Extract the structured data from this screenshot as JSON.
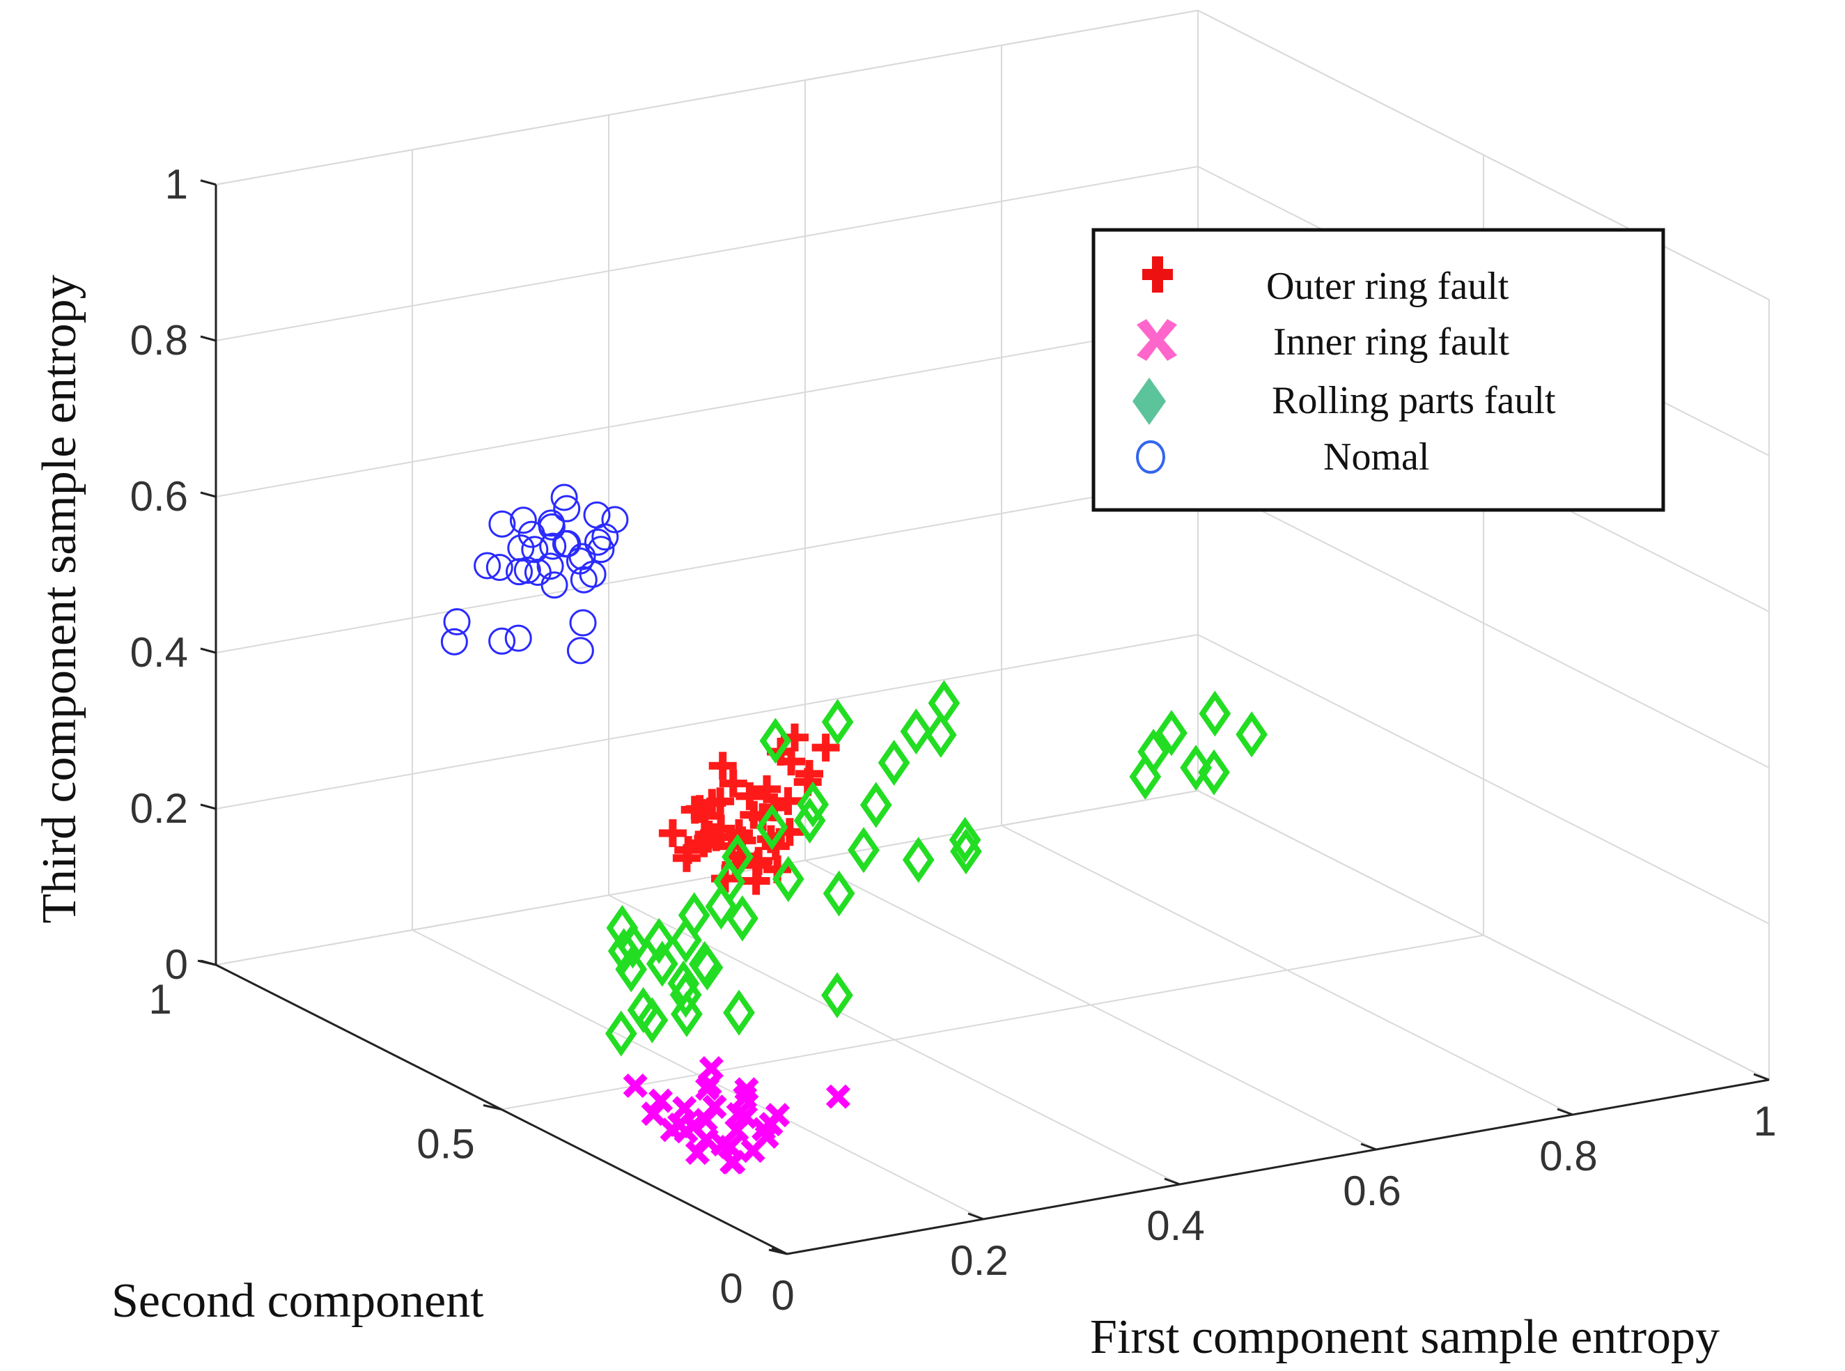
{
  "chart_data": {
    "type": "scatter",
    "projection": "3d",
    "title": "",
    "xlabel": "First component sample entropy",
    "ylabel": "Second component",
    "zlabel": "Third component sample entropy",
    "xlim": [
      0,
      1
    ],
    "ylim": [
      0,
      1
    ],
    "zlim": [
      0,
      1
    ],
    "grid": true,
    "x_ticks": [
      {
        "value": 0,
        "label": "0"
      },
      {
        "value": 0.2,
        "label": "0.2"
      },
      {
        "value": 0.4,
        "label": "0.4"
      },
      {
        "value": 0.6,
        "label": "0.6"
      },
      {
        "value": 0.8,
        "label": "0.8"
      },
      {
        "value": 1,
        "label": "1"
      }
    ],
    "y_ticks": [
      {
        "value": 0,
        "label": "0"
      },
      {
        "value": 0.5,
        "label": "0.5"
      },
      {
        "value": 1,
        "label": "1"
      }
    ],
    "z_ticks": [
      {
        "value": 0,
        "label": "0"
      },
      {
        "value": 0.2,
        "label": "0.2"
      },
      {
        "value": 0.4,
        "label": "0.4"
      },
      {
        "value": 0.6,
        "label": "0.6"
      },
      {
        "value": 0.8,
        "label": "0.8"
      },
      {
        "value": 1,
        "label": "1"
      }
    ],
    "legend_position": "top-right",
    "series": [
      {
        "name": "Outer ring fault",
        "marker": "plus",
        "color": "#ff1a1a",
        "legend_color": "#ee1111",
        "points": [
          [
            0.28,
            0.62,
            0.24
          ],
          [
            0.3,
            0.6,
            0.25
          ],
          [
            0.31,
            0.63,
            0.22
          ],
          [
            0.29,
            0.58,
            0.23
          ],
          [
            0.33,
            0.61,
            0.26
          ],
          [
            0.32,
            0.57,
            0.24
          ],
          [
            0.27,
            0.64,
            0.21
          ],
          [
            0.26,
            0.62,
            0.23
          ],
          [
            0.3,
            0.66,
            0.25
          ],
          [
            0.34,
            0.65,
            0.27
          ],
          [
            0.35,
            0.6,
            0.28
          ],
          [
            0.31,
            0.55,
            0.22
          ],
          [
            0.28,
            0.59,
            0.2
          ],
          [
            0.33,
            0.68,
            0.3
          ],
          [
            0.36,
            0.63,
            0.33
          ],
          [
            0.29,
            0.66,
            0.26
          ],
          [
            0.27,
            0.58,
            0.27
          ],
          [
            0.32,
            0.64,
            0.19
          ],
          [
            0.3,
            0.61,
            0.31
          ],
          [
            0.34,
            0.58,
            0.25
          ],
          [
            0.26,
            0.6,
            0.29
          ],
          [
            0.31,
            0.67,
            0.22
          ],
          [
            0.35,
            0.66,
            0.24
          ],
          [
            0.29,
            0.63,
            0.28
          ],
          [
            0.38,
            0.64,
            0.34
          ],
          [
            0.4,
            0.62,
            0.33
          ],
          [
            0.36,
            0.58,
            0.32
          ],
          [
            0.33,
            0.56,
            0.35
          ],
          [
            0.28,
            0.56,
            0.26
          ],
          [
            0.32,
            0.6,
            0.21
          ],
          [
            0.3,
            0.57,
            0.2
          ],
          [
            0.27,
            0.61,
            0.24
          ],
          [
            0.34,
            0.62,
            0.29
          ],
          [
            0.37,
            0.6,
            0.3
          ],
          [
            0.31,
            0.65,
            0.27
          ],
          [
            0.29,
            0.55,
            0.23
          ],
          [
            0.35,
            0.63,
            0.22
          ],
          [
            0.25,
            0.63,
            0.25
          ],
          [
            0.33,
            0.59,
            0.28
          ],
          [
            0.3,
            0.64,
            0.23
          ]
        ]
      },
      {
        "name": "Inner ring fault",
        "marker": "x",
        "color": "#ff00ff",
        "legend_color": "#ff66cc",
        "points": [
          [
            0.05,
            0.25,
            0.06
          ],
          [
            0.07,
            0.22,
            0.04
          ],
          [
            0.08,
            0.28,
            0.05
          ],
          [
            0.06,
            0.2,
            0.03
          ],
          [
            0.09,
            0.24,
            0.07
          ],
          [
            0.04,
            0.27,
            0.05
          ],
          [
            0.1,
            0.26,
            0.04
          ],
          [
            0.07,
            0.3,
            0.06
          ],
          [
            0.05,
            0.18,
            0.04
          ],
          [
            0.08,
            0.21,
            0.08
          ],
          [
            0.11,
            0.23,
            0.05
          ],
          [
            0.06,
            0.23,
            0.09
          ],
          [
            0.03,
            0.24,
            0.07
          ],
          [
            0.09,
            0.19,
            0.06
          ],
          [
            0.07,
            0.26,
            0.1
          ],
          [
            0.12,
            0.28,
            0.07
          ],
          [
            0.04,
            0.21,
            0.06
          ],
          [
            0.08,
            0.25,
            0.03
          ],
          [
            0.1,
            0.2,
            0.07
          ],
          [
            0.06,
            0.28,
            0.04
          ],
          [
            0.05,
            0.32,
            0.05
          ],
          [
            0.13,
            0.24,
            0.06
          ],
          [
            0.02,
            0.3,
            0.1
          ],
          [
            0.18,
            0.22,
            0.08
          ],
          [
            0.09,
            0.29,
            0.09
          ],
          [
            0.06,
            0.26,
            0.02
          ],
          [
            0.11,
            0.26,
            0.09
          ],
          [
            0.07,
            0.18,
            0.05
          ],
          [
            0.04,
            0.29,
            0.08
          ],
          [
            0.08,
            0.27,
            0.12
          ]
        ]
      },
      {
        "name": "Rolling parts fault",
        "marker": "diamond",
        "color": "#22dd22",
        "legend_color": "#5cc49a",
        "points": [
          [
            0.26,
            0.72,
            0.04
          ],
          [
            0.28,
            0.7,
            0.05
          ],
          [
            0.3,
            0.74,
            0.06
          ],
          [
            0.29,
            0.68,
            0.03
          ],
          [
            0.31,
            0.71,
            0.07
          ],
          [
            0.27,
            0.75,
            0.05
          ],
          [
            0.32,
            0.69,
            0.04
          ],
          [
            0.25,
            0.7,
            0.08
          ],
          [
            0.33,
            0.73,
            0.09
          ],
          [
            0.3,
            0.66,
            0.06
          ],
          [
            0.28,
            0.77,
            0.07
          ],
          [
            0.34,
            0.7,
            0.11
          ],
          [
            0.36,
            0.72,
            0.13
          ],
          [
            0.38,
            0.74,
            0.15
          ],
          [
            0.35,
            0.68,
            0.1
          ],
          [
            0.18,
            0.6,
            0.02
          ],
          [
            0.2,
            0.58,
            0.04
          ],
          [
            0.22,
            0.63,
            0.03
          ],
          [
            0.24,
            0.59,
            0.06
          ],
          [
            0.27,
            0.64,
            0.01
          ],
          [
            0.3,
            0.6,
            0.02
          ],
          [
            0.45,
            0.8,
            0.15
          ],
          [
            0.48,
            0.78,
            0.18
          ],
          [
            0.5,
            0.82,
            0.14
          ],
          [
            0.52,
            0.76,
            0.12
          ],
          [
            0.55,
            0.79,
            0.16
          ],
          [
            0.57,
            0.75,
            0.1
          ],
          [
            0.58,
            0.81,
            0.2
          ],
          [
            0.62,
            0.84,
            0.22
          ],
          [
            0.66,
            0.86,
            0.24
          ],
          [
            0.6,
            0.72,
            0.13
          ],
          [
            0.63,
            0.77,
            0.09
          ],
          [
            0.68,
            0.9,
            0.18
          ],
          [
            0.54,
            0.84,
            0.25
          ],
          [
            0.5,
            0.88,
            0.22
          ],
          [
            0.83,
            0.8,
            0.13
          ],
          [
            0.85,
            0.82,
            0.15
          ],
          [
            0.87,
            0.78,
            0.14
          ],
          [
            0.88,
            0.84,
            0.16
          ],
          [
            0.9,
            0.8,
            0.12
          ],
          [
            0.93,
            0.85,
            0.17
          ],
          [
            0.95,
            0.82,
            0.15
          ],
          [
            0.4,
            0.6,
            0.02
          ],
          [
            0.46,
            0.7,
            0.1
          ],
          [
            0.42,
            0.72,
            0.12
          ]
        ]
      },
      {
        "name": "Nomal",
        "marker": "circle",
        "color": "#2a2aff",
        "legend_color": "#3366ee",
        "points": [
          [
            0.22,
            0.82,
            0.55
          ],
          [
            0.24,
            0.8,
            0.56
          ],
          [
            0.25,
            0.84,
            0.54
          ],
          [
            0.23,
            0.78,
            0.57
          ],
          [
            0.26,
            0.81,
            0.53
          ],
          [
            0.27,
            0.85,
            0.58
          ],
          [
            0.21,
            0.83,
            0.52
          ],
          [
            0.24,
            0.86,
            0.55
          ],
          [
            0.28,
            0.8,
            0.56
          ],
          [
            0.22,
            0.79,
            0.59
          ],
          [
            0.25,
            0.77,
            0.53
          ],
          [
            0.2,
            0.81,
            0.56
          ],
          [
            0.29,
            0.83,
            0.54
          ],
          [
            0.23,
            0.85,
            0.51
          ],
          [
            0.26,
            0.78,
            0.6
          ],
          [
            0.24,
            0.82,
            0.5
          ],
          [
            0.27,
            0.79,
            0.55
          ],
          [
            0.21,
            0.86,
            0.57
          ],
          [
            0.28,
            0.84,
            0.52
          ],
          [
            0.25,
            0.82,
            0.61
          ],
          [
            0.2,
            0.78,
            0.54
          ],
          [
            0.22,
            0.84,
            0.58
          ],
          [
            0.26,
            0.86,
            0.56
          ],
          [
            0.29,
            0.8,
            0.58
          ],
          [
            0.23,
            0.81,
            0.53
          ],
          [
            0.08,
            0.72,
            0.5
          ],
          [
            0.1,
            0.75,
            0.51
          ],
          [
            0.14,
            0.74,
            0.48
          ],
          [
            0.18,
            0.78,
            0.46
          ],
          [
            0.22,
            0.74,
            0.45
          ],
          [
            0.24,
            0.77,
            0.47
          ],
          [
            0.16,
            0.8,
            0.55
          ],
          [
            0.19,
            0.83,
            0.53
          ],
          [
            0.27,
            0.82,
            0.5
          ]
        ]
      }
    ]
  }
}
